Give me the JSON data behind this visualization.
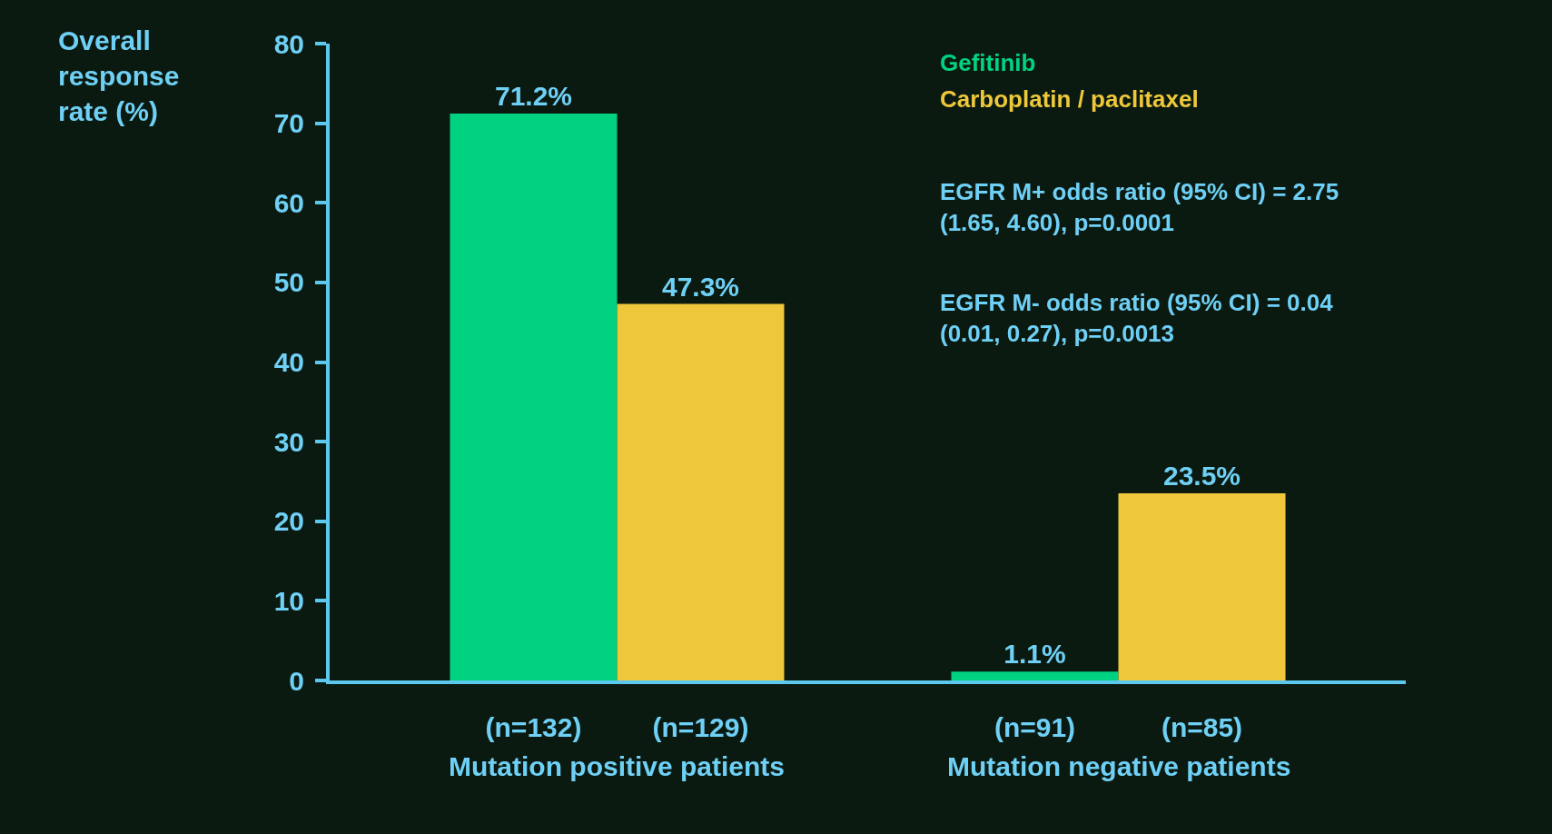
{
  "chart_data": {
    "type": "bar",
    "ylabel": "Overall response rate (%)",
    "categories": [
      "(n=132)",
      "(n=129)",
      null,
      "(n=91)",
      "(n=85)"
    ],
    "series": [
      {
        "name": "Gefitinib",
        "color": "#00d282",
        "values": [
          71.2,
          null,
          null,
          1.1,
          null
        ],
        "value_labels": [
          "71.2%",
          null,
          null,
          "1.1%",
          null
        ]
      },
      {
        "name": "Carboplatin / paclitaxel",
        "color": "#eec83a",
        "values": [
          null,
          47.3,
          null,
          null,
          23.5
        ],
        "value_labels": [
          null,
          "47.3%",
          null,
          null,
          "23.5%"
        ]
      }
    ],
    "ylim": [
      0,
      80
    ],
    "yticks": [
      0,
      10,
      20,
      30,
      40,
      50,
      60,
      70,
      80
    ],
    "grid": false,
    "legend": "top right",
    "annotations": [
      "Mutation positive patients",
      "Mutation negative patients",
      "EGFR M+ odds ratio (95% CI) = 2.75\n(1.65, 4.60), p=0.0001",
      "EGFR M- odds ratio (95% CI) = 0.04\n(0.01, 0.27), p=0.0013"
    ]
  }
}
